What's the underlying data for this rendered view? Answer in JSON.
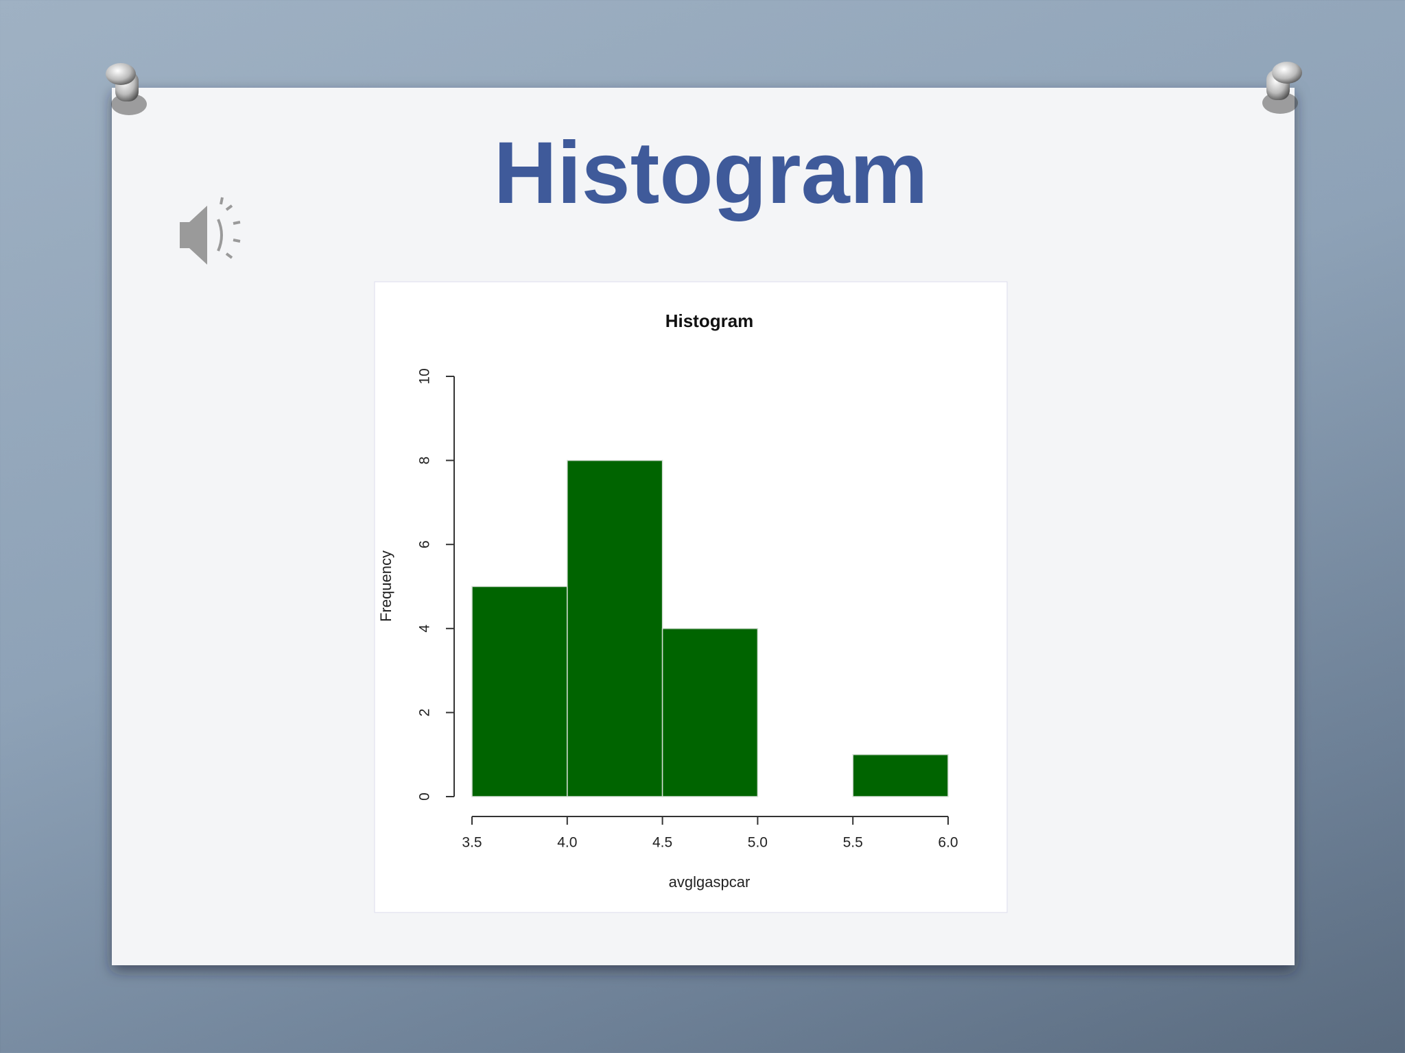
{
  "slide_title": "Histogram",
  "chart_data": {
    "type": "histogram",
    "title": "Histogram",
    "x_label": "avglgaspcar",
    "y_label": "Frequency",
    "bins": [
      3.5,
      4.0,
      4.5,
      5.0,
      5.5,
      6.0
    ],
    "counts": [
      5,
      8,
      4,
      0,
      1
    ],
    "color": "#006400",
    "xlim": [
      3.5,
      6.0
    ],
    "xticks": [
      3.5,
      {
        "value": 4,
        "label": "4.0"
      },
      4.5,
      {
        "value": 5,
        "label": "5.0"
      },
      5.5,
      {
        "value": 6,
        "label": "6.0"
      }
    ],
    "ylim": [
      0,
      10
    ],
    "yticks": [
      0,
      2,
      4,
      6,
      8,
      10
    ]
  }
}
